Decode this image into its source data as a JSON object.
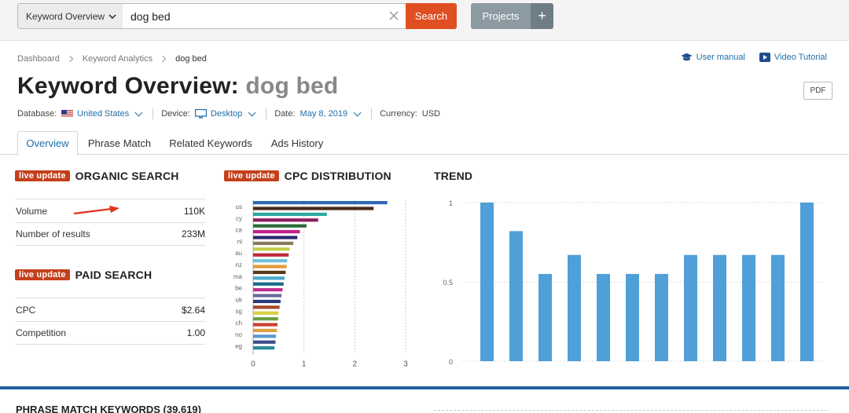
{
  "topbar": {
    "db_select_label": "Keyword Overview",
    "search_value": "dog bed",
    "search_button": "Search",
    "projects_button": "Projects",
    "projects_plus": "+"
  },
  "breadcrumb": {
    "items": [
      "Dashboard",
      "Keyword Analytics",
      "dog bed"
    ]
  },
  "help": {
    "user_manual": "User manual",
    "video_tutorial": "Video Tutorial"
  },
  "title": {
    "prefix": "Keyword Overview:",
    "keyword": "dog bed"
  },
  "pdf_label": "PDF",
  "filters": {
    "database_label": "Database:",
    "database_value": "United States",
    "device_label": "Device:",
    "device_value": "Desktop",
    "date_label": "Date:",
    "date_value": "May 8, 2019",
    "currency_label": "Currency:",
    "currency_value": "USD"
  },
  "tabs": [
    "Overview",
    "Phrase Match",
    "Related Keywords",
    "Ads History"
  ],
  "organic": {
    "badge": "live update",
    "title": "ORGANIC SEARCH",
    "rows": [
      {
        "label": "Volume",
        "value": "110K"
      },
      {
        "label": "Number of results",
        "value": "233M"
      }
    ]
  },
  "paid": {
    "badge": "live update",
    "title": "PAID SEARCH",
    "rows": [
      {
        "label": "CPC",
        "value": "$2.64"
      },
      {
        "label": "Competition",
        "value": "1.00"
      }
    ]
  },
  "cpc": {
    "badge": "live update",
    "title": "CPC DISTRIBUTION"
  },
  "trend": {
    "title": "TREND"
  },
  "bottom": {
    "title": "PHRASE MATCH KEYWORDS (39,619)"
  },
  "colors": {
    "accent_orange": "#e04f21",
    "badge_red": "#c4401c",
    "link_blue": "#1f6ea8",
    "trend_bar": "#4f9fd9"
  },
  "chart_data": [
    {
      "type": "bar",
      "orientation": "horizontal",
      "title": "CPC DISTRIBUTION",
      "categories": [
        "us",
        "",
        "cy",
        "",
        "ca",
        "",
        "nl",
        "",
        "au",
        "",
        "nz",
        "",
        "ma",
        "",
        "be",
        "",
        "uk",
        "",
        "sg",
        "",
        "ch",
        "",
        "no",
        "",
        "eg",
        ""
      ],
      "values": [
        2.64,
        2.37,
        1.45,
        1.28,
        1.05,
        0.92,
        0.87,
        0.79,
        0.72,
        0.7,
        0.67,
        0.66,
        0.64,
        0.62,
        0.6,
        0.58,
        0.56,
        0.54,
        0.52,
        0.5,
        0.49,
        0.48,
        0.47,
        0.45,
        0.44,
        0.42
      ],
      "colors": [
        "#2f68b4",
        "#4a2a1a",
        "#2aa9a0",
        "#8a1e5e",
        "#2b6b39",
        "#c2208a",
        "#2a2a6e",
        "#8a7a5a",
        "#c3d04a",
        "#c0283a",
        "#70c0d8",
        "#e49a3a",
        "#5a3a1a",
        "#4aaad0",
        "#1a6a8a",
        "#c03090",
        "#6a6a9a",
        "#2a3a7a",
        "#a44a2a",
        "#d8d040",
        "#6aa040",
        "#c84030",
        "#e0a040",
        "#5a9ad0",
        "#3a4a8a",
        "#2a8a9a"
      ],
      "xlim": [
        0,
        3
      ],
      "xticks": [
        "0",
        "1",
        "2",
        "3"
      ]
    },
    {
      "type": "bar",
      "title": "TREND",
      "values": [
        1,
        0.82,
        0.55,
        0.67,
        0.55,
        0.55,
        0.55,
        0.67,
        0.67,
        0.67,
        0.67,
        1
      ],
      "ylim": [
        0,
        1
      ],
      "yticks": [
        "1",
        "0.5",
        "0"
      ]
    }
  ]
}
